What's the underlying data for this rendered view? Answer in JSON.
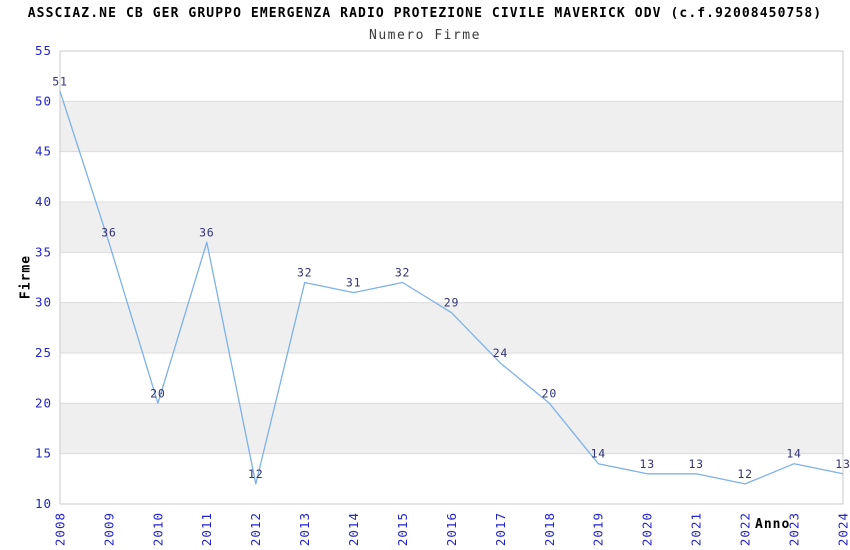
{
  "header": {
    "title": "ASSCIAZ.NE CB GER GRUPPO EMERGENZA RADIO PROTEZIONE CIVILE MAVERICK ODV (c.f.92008450758)",
    "subtitle": "Numero Firme"
  },
  "chart_data": {
    "type": "line",
    "title": "ASSCIAZ.NE CB GER GRUPPO EMERGENZA RADIO PROTEZIONE CIVILE MAVERICK ODV (c.f.92008450758)",
    "subtitle": "Numero Firme",
    "xlabel": "Anno",
    "ylabel": "Firme",
    "categories": [
      "2008",
      "2009",
      "2010",
      "2011",
      "2012",
      "2013",
      "2014",
      "2015",
      "2016",
      "2017",
      "2018",
      "2019",
      "2020",
      "2021",
      "2022",
      "2023",
      "2024"
    ],
    "series": [
      {
        "name": "Numero Firme",
        "values": [
          51,
          36,
          20,
          36,
          12,
          32,
          31,
          32,
          29,
          24,
          20,
          14,
          13,
          13,
          12,
          14,
          13
        ]
      }
    ],
    "data_labels_visible": true,
    "ylim": [
      10,
      55
    ],
    "yticks": [
      10,
      15,
      20,
      25,
      30,
      35,
      40,
      45,
      50,
      55
    ],
    "grid": true,
    "legend_position": "none",
    "background_style": "alternating horizontal bands",
    "colors": {
      "line": "#7eb1e8",
      "tick_label": "#2323cc",
      "data_label": "#333377",
      "band": "#efefef",
      "grid": "#dcdcdc",
      "axis_border": "#c9c9c9",
      "title": "#000000",
      "subtitle": "#3a3a3a"
    }
  }
}
